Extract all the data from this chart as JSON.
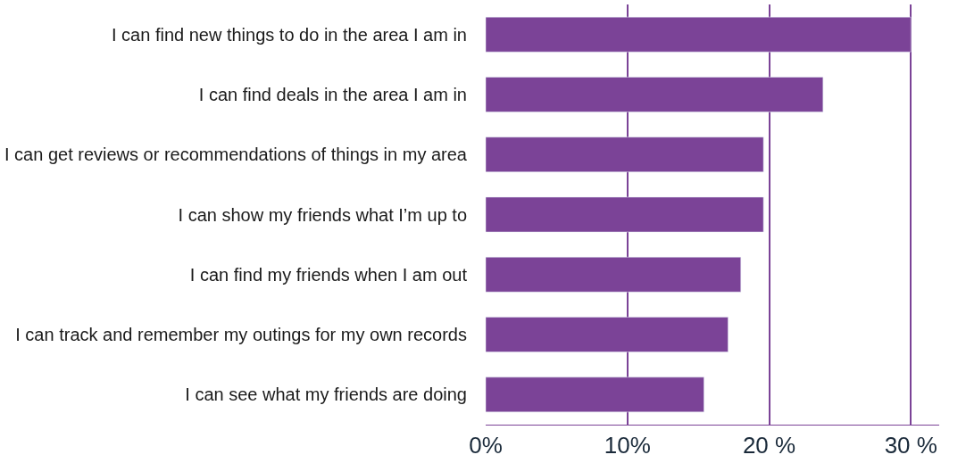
{
  "chart_data": {
    "type": "bar",
    "orientation": "horizontal",
    "categories": [
      "I can find new things to do in the area I am in",
      "I can find deals in the area I am in",
      "I can get reviews or recommendations of things in my area",
      "I can show my friends what I’m up to",
      "I can find my friends when I am out",
      "I can track and remember my outings for my own records",
      "I can see what my friends are doing"
    ],
    "values": [
      30.0,
      23.8,
      19.6,
      19.6,
      18.0,
      17.1,
      15.4
    ],
    "color": "#7b4397",
    "xlim": [
      0,
      32
    ],
    "xticks": [
      {
        "value": 0,
        "label": "0%"
      },
      {
        "value": 10,
        "label": "10%"
      },
      {
        "value": 20,
        "label": "20 %"
      },
      {
        "value": 30,
        "label": "30 %"
      }
    ],
    "grid": "x"
  }
}
